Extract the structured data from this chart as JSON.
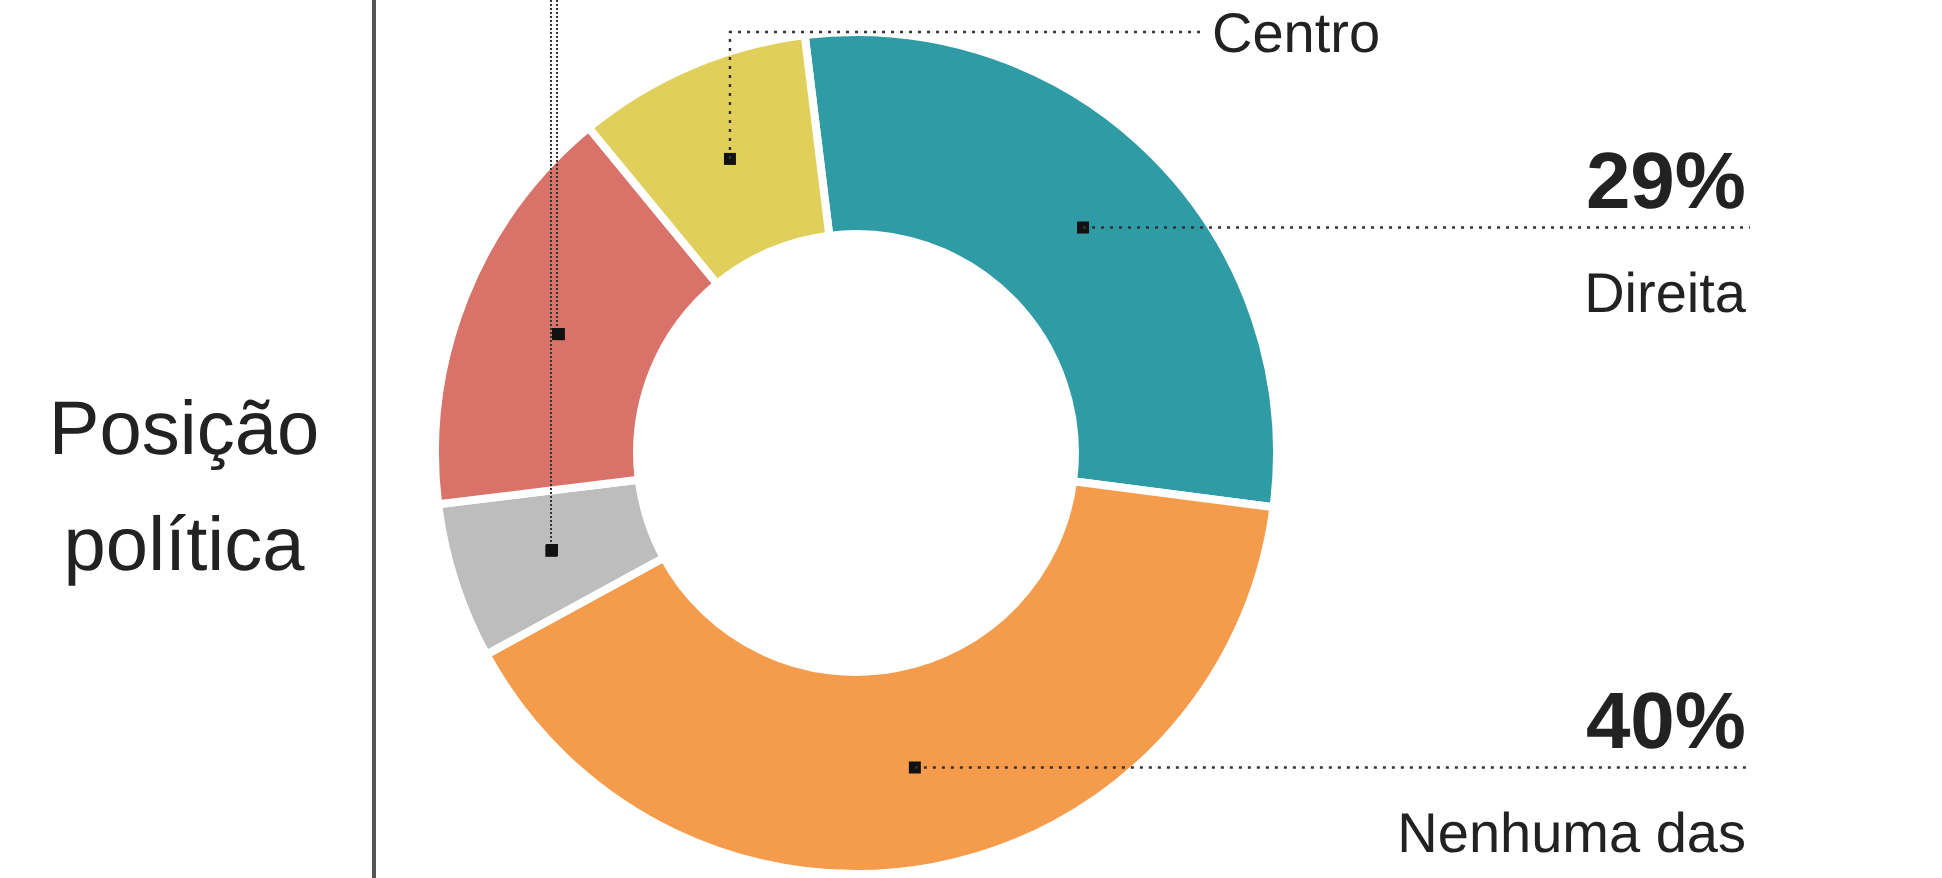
{
  "chart_data": {
    "type": "donut",
    "title": "Posição política",
    "categories": [
      "Direita",
      "Nenhuma das",
      null,
      null,
      "Centro"
    ],
    "values": [
      29,
      40,
      6,
      16,
      9
    ],
    "colors": [
      "#2e9ba5",
      "#f59c4c",
      "#bdbdbd",
      "#d9736a",
      "#e0cf5a"
    ],
    "value_labels": [
      "29%",
      "40%",
      null,
      null,
      null
    ],
    "legend": false
  }
}
